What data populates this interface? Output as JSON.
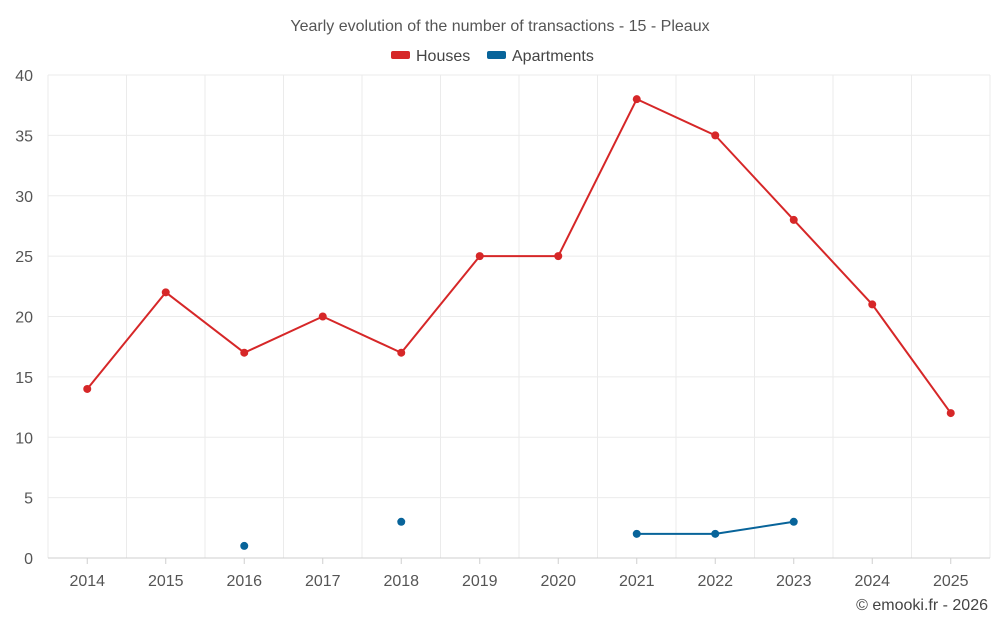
{
  "chart_data": {
    "type": "line",
    "title": "Yearly evolution of the number of transactions - 15 - Pleaux",
    "xlabel": "",
    "ylabel": "",
    "categories": [
      "2014",
      "2015",
      "2016",
      "2017",
      "2018",
      "2019",
      "2020",
      "2021",
      "2022",
      "2023",
      "2024",
      "2025"
    ],
    "ylim": [
      0,
      40
    ],
    "yticks": [
      0,
      5,
      10,
      15,
      20,
      25,
      30,
      35,
      40
    ],
    "grid": true,
    "legend_position": "top-center",
    "series": [
      {
        "name": "Houses",
        "color": "#d62728",
        "values": [
          14,
          22,
          17,
          20,
          17,
          25,
          25,
          38,
          35,
          28,
          21,
          12
        ]
      },
      {
        "name": "Apartments",
        "color": "#08649a",
        "values": [
          null,
          null,
          1,
          null,
          3,
          null,
          null,
          2,
          2,
          3,
          null,
          null
        ]
      }
    ]
  },
  "credit": "© emooki.fr - 2026"
}
